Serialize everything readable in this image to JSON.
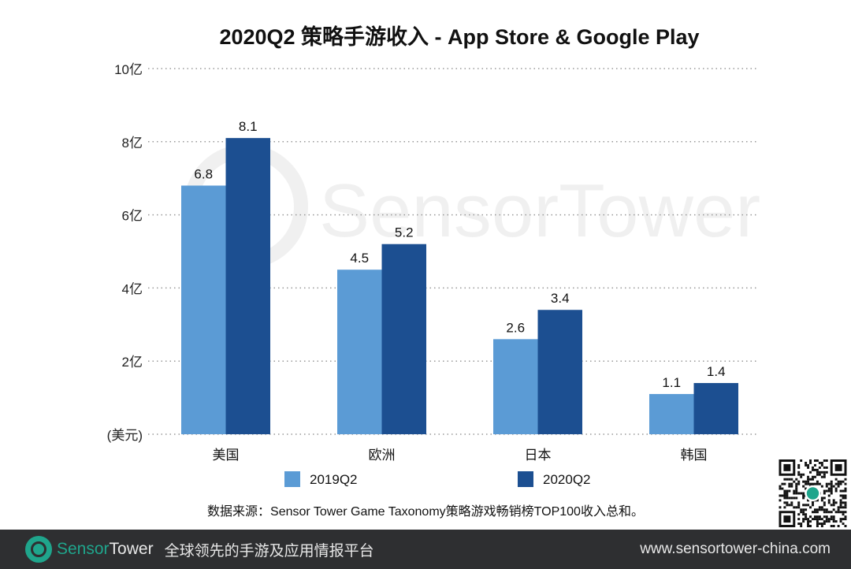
{
  "chart_data": {
    "type": "bar",
    "title": "2020Q2 策略手游收入 - App Store & Google Play",
    "categories": [
      "美国",
      "欧洲",
      "日本",
      "韩国"
    ],
    "series": [
      {
        "name": "2019Q2",
        "values": [
          6.8,
          4.5,
          2.6,
          1.1
        ],
        "color": "#5b9bd5"
      },
      {
        "name": "2020Q2",
        "values": [
          8.1,
          5.2,
          3.4,
          1.4
        ],
        "color": "#1c4f91"
      }
    ],
    "data_labels": [
      [
        "6.8",
        "4.5",
        "2.6",
        "1.1"
      ],
      [
        "8.1",
        "5.2",
        "3.4",
        "1.4"
      ]
    ],
    "y_ticks": [
      0,
      2,
      4,
      6,
      8,
      10
    ],
    "y_tick_labels": [
      "(美元)",
      "2亿",
      "4亿",
      "6亿",
      "8亿",
      "10亿"
    ],
    "ylabel": "",
    "xlabel": "",
    "ylim": [
      0,
      10
    ],
    "grid": "horizontal dotted",
    "legend_placement": "bottom",
    "source_note": "数据来源：Sensor Tower Game Taxonomy策略游戏畅销榜TOP100收入总和。"
  },
  "watermark": "SensorTower",
  "footer": {
    "brand_a": "Sensor",
    "brand_b": "Tower",
    "slogan": "全球领先的手游及应用情报平台",
    "url": "www.sensortower-china.com"
  }
}
